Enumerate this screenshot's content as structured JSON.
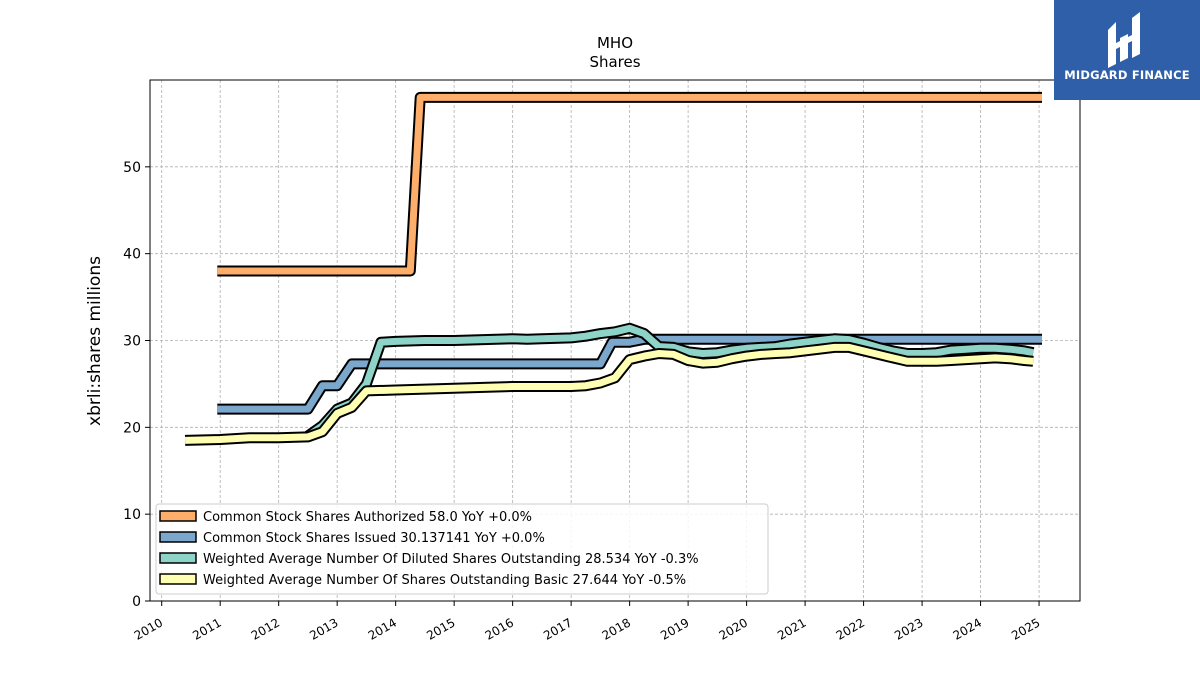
{
  "chart_data": {
    "type": "line",
    "title": "MHO",
    "subtitle": "Shares",
    "ylabel": "xbrli:shares millions",
    "xlabel": "",
    "xlim": [
      2009.8,
      2025.7
    ],
    "ylim": [
      0,
      60
    ],
    "yticks": [
      0,
      10,
      20,
      30,
      40,
      50
    ],
    "xticks": [
      "2010",
      "2011",
      "2012",
      "2013",
      "2014",
      "2015",
      "2016",
      "2017",
      "2018",
      "2019",
      "2020",
      "2021",
      "2022",
      "2023",
      "2024",
      "2025"
    ],
    "grid": true,
    "legend_position": "lower-left",
    "series": [
      {
        "name": "Common Stock Shares Authorized  58.0 YoY +0.0%",
        "color": "#fdae6b",
        "points": [
          [
            2010.95,
            38.0
          ],
          [
            2014.25,
            38.0
          ],
          [
            2014.42,
            58.0
          ],
          [
            2025.05,
            58.0
          ]
        ]
      },
      {
        "name": "Common Stock Shares Issued  30.137141 YoY +0.0%",
        "color": "#7ba7cc",
        "points": [
          [
            2010.95,
            22.1
          ],
          [
            2012.5,
            22.1
          ],
          [
            2012.75,
            24.8
          ],
          [
            2013.0,
            24.8
          ],
          [
            2013.25,
            27.3
          ],
          [
            2017.5,
            27.3
          ],
          [
            2017.7,
            29.8
          ],
          [
            2018.0,
            29.8
          ],
          [
            2018.25,
            30.14
          ],
          [
            2025.05,
            30.14
          ]
        ]
      },
      {
        "name": "Weighted Average Number Of Diluted Shares Outstanding  28.534 YoY -0.3%",
        "color": "#8dd3c7",
        "points": [
          [
            2012.5,
            19.0
          ],
          [
            2012.75,
            20.2
          ],
          [
            2013.0,
            22.1
          ],
          [
            2013.25,
            22.8
          ],
          [
            2013.5,
            25.0
          ],
          [
            2013.75,
            29.8
          ],
          [
            2014.0,
            29.9
          ],
          [
            2014.5,
            30.0
          ],
          [
            2015.0,
            30.0
          ],
          [
            2015.5,
            30.1
          ],
          [
            2016.0,
            30.2
          ],
          [
            2016.25,
            30.15
          ],
          [
            2016.5,
            30.2
          ],
          [
            2017.0,
            30.3
          ],
          [
            2017.25,
            30.5
          ],
          [
            2017.5,
            30.8
          ],
          [
            2017.75,
            31.0
          ],
          [
            2018.0,
            31.4
          ],
          [
            2018.25,
            30.8
          ],
          [
            2018.5,
            29.3
          ],
          [
            2018.75,
            29.2
          ],
          [
            2019.0,
            28.7
          ],
          [
            2019.25,
            28.5
          ],
          [
            2019.5,
            28.6
          ],
          [
            2019.75,
            28.9
          ],
          [
            2020.0,
            29.1
          ],
          [
            2020.25,
            29.2
          ],
          [
            2020.5,
            29.3
          ],
          [
            2020.75,
            29.6
          ],
          [
            2021.0,
            29.8
          ],
          [
            2021.25,
            30.0
          ],
          [
            2021.5,
            30.2
          ],
          [
            2021.75,
            30.1
          ],
          [
            2022.0,
            29.7
          ],
          [
            2022.25,
            29.2
          ],
          [
            2022.5,
            28.8
          ],
          [
            2022.75,
            28.5
          ],
          [
            2023.0,
            28.5
          ],
          [
            2023.25,
            28.6
          ],
          [
            2023.5,
            28.9
          ],
          [
            2023.75,
            29.0
          ],
          [
            2024.0,
            29.1
          ],
          [
            2024.25,
            29.1
          ],
          [
            2024.5,
            29.0
          ],
          [
            2024.75,
            28.8
          ],
          [
            2024.9,
            28.6
          ]
        ]
      },
      {
        "name": "Weighted Average Number Of Shares Outstanding Basic  27.644 YoY -0.5%",
        "color": "#ffffb3",
        "points": [
          [
            2010.4,
            18.5
          ],
          [
            2011.0,
            18.6
          ],
          [
            2011.5,
            18.8
          ],
          [
            2012.0,
            18.8
          ],
          [
            2012.5,
            18.9
          ],
          [
            2012.75,
            19.5
          ],
          [
            2013.0,
            21.6
          ],
          [
            2013.25,
            22.3
          ],
          [
            2013.5,
            24.2
          ],
          [
            2014.0,
            24.3
          ],
          [
            2014.5,
            24.4
          ],
          [
            2015.0,
            24.5
          ],
          [
            2015.5,
            24.6
          ],
          [
            2016.0,
            24.7
          ],
          [
            2016.5,
            24.7
          ],
          [
            2017.0,
            24.7
          ],
          [
            2017.25,
            24.8
          ],
          [
            2017.5,
            25.1
          ],
          [
            2017.75,
            25.7
          ],
          [
            2018.0,
            27.8
          ],
          [
            2018.25,
            28.2
          ],
          [
            2018.5,
            28.5
          ],
          [
            2018.75,
            28.4
          ],
          [
            2019.0,
            27.7
          ],
          [
            2019.25,
            27.4
          ],
          [
            2019.5,
            27.5
          ],
          [
            2019.75,
            27.9
          ],
          [
            2020.0,
            28.2
          ],
          [
            2020.25,
            28.4
          ],
          [
            2020.5,
            28.5
          ],
          [
            2020.75,
            28.6
          ],
          [
            2021.0,
            28.8
          ],
          [
            2021.25,
            29.0
          ],
          [
            2021.5,
            29.2
          ],
          [
            2021.75,
            29.2
          ],
          [
            2022.0,
            28.8
          ],
          [
            2022.25,
            28.4
          ],
          [
            2022.5,
            28.0
          ],
          [
            2022.75,
            27.6
          ],
          [
            2023.0,
            27.6
          ],
          [
            2023.25,
            27.6
          ],
          [
            2023.5,
            27.7
          ],
          [
            2023.75,
            27.8
          ],
          [
            2024.0,
            27.9
          ],
          [
            2024.25,
            28.0
          ],
          [
            2024.5,
            27.9
          ],
          [
            2024.75,
            27.7
          ],
          [
            2024.9,
            27.6
          ]
        ]
      }
    ]
  },
  "logo": {
    "text": "MIDGARD FINANCE",
    "icon": "midgard-logo-icon"
  }
}
